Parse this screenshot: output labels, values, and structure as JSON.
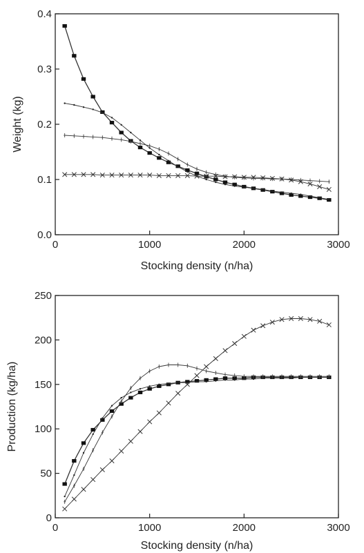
{
  "chart_data": [
    {
      "type": "line",
      "title": "",
      "xlabel": "Stocking density (n/ha)",
      "ylabel": "Weight (kg)",
      "xlim": [
        0,
        3000
      ],
      "ylim": [
        0,
        0.4
      ],
      "xticks": [
        0,
        1000,
        2000,
        3000
      ],
      "yticks": [
        0.0,
        0.1,
        0.2,
        0.3,
        0.4
      ],
      "xtick_labels": [
        "0",
        "1000",
        "2000",
        "3000"
      ],
      "ytick_labels": [
        "0.0",
        "0.1",
        "0.2",
        "0.3",
        "0.4"
      ],
      "grid": false,
      "legend": "none",
      "x": [
        100,
        200,
        300,
        400,
        500,
        600,
        700,
        800,
        900,
        1000,
        1100,
        1200,
        1300,
        1400,
        1500,
        1600,
        1700,
        1800,
        1900,
        2000,
        2100,
        2200,
        2300,
        2400,
        2500,
        2600,
        2700,
        2800,
        2900
      ],
      "series": [
        {
          "marker": "square",
          "values": [
            0.378,
            0.324,
            0.282,
            0.25,
            0.222,
            0.203,
            0.185,
            0.17,
            0.158,
            0.148,
            0.139,
            0.131,
            0.124,
            0.117,
            0.111,
            0.105,
            0.1,
            0.095,
            0.091,
            0.087,
            0.084,
            0.081,
            0.078,
            0.075,
            0.072,
            0.07,
            0.068,
            0.066,
            0.063
          ]
        },
        {
          "marker": "star",
          "values": [
            0.238,
            0.235,
            0.231,
            0.227,
            0.221,
            0.212,
            0.199,
            0.185,
            0.171,
            0.157,
            0.145,
            0.134,
            0.123,
            0.114,
            0.106,
            0.1,
            0.095,
            0.091,
            0.088,
            0.086,
            0.084,
            0.082,
            0.079,
            0.077,
            0.075,
            0.073,
            0.07,
            0.067,
            0.064
          ]
        },
        {
          "marker": "plus",
          "values": [
            0.18,
            0.179,
            0.178,
            0.177,
            0.176,
            0.174,
            0.172,
            0.169,
            0.165,
            0.161,
            0.155,
            0.147,
            0.137,
            0.127,
            0.119,
            0.113,
            0.109,
            0.106,
            0.104,
            0.103,
            0.102,
            0.102,
            0.101,
            0.101,
            0.1,
            0.099,
            0.098,
            0.097,
            0.096
          ]
        },
        {
          "marker": "x",
          "values": [
            0.109,
            0.109,
            0.109,
            0.109,
            0.108,
            0.108,
            0.108,
            0.108,
            0.108,
            0.108,
            0.107,
            0.107,
            0.107,
            0.107,
            0.106,
            0.106,
            0.106,
            0.105,
            0.105,
            0.104,
            0.104,
            0.103,
            0.102,
            0.101,
            0.099,
            0.096,
            0.092,
            0.087,
            0.082
          ]
        }
      ]
    },
    {
      "type": "line",
      "title": "",
      "xlabel": "Stocking density (n/ha)",
      "ylabel": "Production (kg/ha)",
      "xlim": [
        0,
        3000
      ],
      "ylim": [
        0,
        250
      ],
      "xticks": [
        0,
        1000,
        2000,
        3000
      ],
      "yticks": [
        0,
        50,
        100,
        150,
        200,
        250
      ],
      "xtick_labels": [
        "0",
        "1000",
        "2000",
        "3000"
      ],
      "ytick_labels": [
        "0",
        "50",
        "100",
        "150",
        "200",
        "250"
      ],
      "grid": false,
      "legend": "none",
      "x": [
        100,
        200,
        300,
        400,
        500,
        600,
        700,
        800,
        900,
        1000,
        1100,
        1200,
        1300,
        1400,
        1500,
        1600,
        1700,
        1800,
        1900,
        2000,
        2100,
        2200,
        2300,
        2400,
        2500,
        2600,
        2700,
        2800,
        2900
      ],
      "series": [
        {
          "marker": "square",
          "values": [
            38,
            64,
            84,
            99,
            110,
            120,
            128,
            135,
            141,
            145,
            148,
            150,
            152,
            153,
            154,
            155,
            156,
            157,
            157,
            157,
            158,
            158,
            158,
            158,
            158,
            158,
            158,
            158,
            158
          ]
        },
        {
          "marker": "star",
          "values": [
            24,
            48,
            73,
            94,
            112,
            126,
            135,
            141,
            145,
            148,
            150,
            151,
            152,
            152,
            153,
            153,
            154,
            155,
            155,
            156,
            156,
            157,
            157,
            157,
            157,
            158,
            158,
            158,
            158
          ]
        },
        {
          "marker": "plus",
          "values": [
            18,
            36,
            55,
            76,
            96,
            114,
            131,
            146,
            157,
            165,
            170,
            172,
            172,
            171,
            168,
            165,
            163,
            161,
            160,
            159,
            159,
            159,
            159,
            159,
            159,
            159,
            159,
            159,
            159
          ]
        },
        {
          "marker": "x",
          "values": [
            10,
            21,
            32,
            43,
            54,
            64,
            75,
            86,
            97,
            108,
            118,
            129,
            140,
            150,
            160,
            170,
            179,
            188,
            196,
            204,
            211,
            216,
            220,
            223,
            224,
            224,
            223,
            221,
            217
          ]
        }
      ]
    }
  ]
}
